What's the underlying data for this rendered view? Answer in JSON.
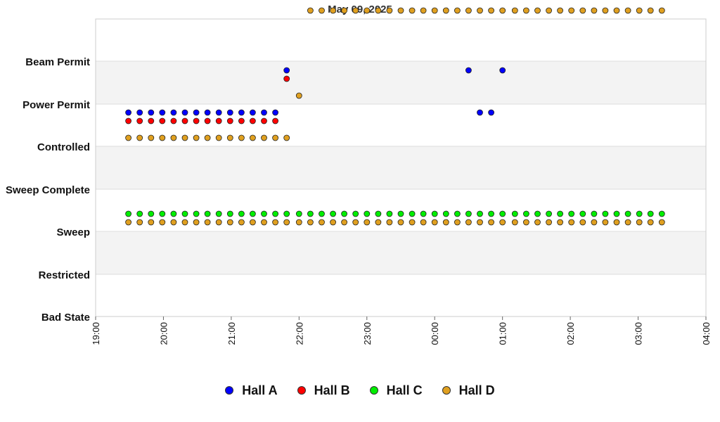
{
  "chart_data": {
    "type": "scatter",
    "title": "May 09, 2025",
    "xlabel": "",
    "ylabel": "",
    "grid": true,
    "legend_position": "bottom",
    "y_categories": [
      "Bad State",
      "Restricted",
      "Sweep",
      "Sweep Complete",
      "Controlled",
      "Power Permit",
      "Beam Permit"
    ],
    "x_range_hours": [
      19,
      28
    ],
    "x_ticks": [
      "19:00",
      "20:00",
      "21:00",
      "22:00",
      "23:00",
      "00:00",
      "01:00",
      "02:00",
      "03:00",
      "04:00"
    ],
    "series": [
      {
        "name": "Hall A",
        "color": "#0000ff",
        "points": [
          [
            "19:29",
            "Power Permit"
          ],
          [
            "19:39",
            "Power Permit"
          ],
          [
            "19:49",
            "Power Permit"
          ],
          [
            "19:59",
            "Power Permit"
          ],
          [
            "20:09",
            "Power Permit"
          ],
          [
            "20:19",
            "Power Permit"
          ],
          [
            "20:29",
            "Power Permit"
          ],
          [
            "20:39",
            "Power Permit"
          ],
          [
            "20:49",
            "Power Permit"
          ],
          [
            "20:59",
            "Power Permit"
          ],
          [
            "21:09",
            "Power Permit"
          ],
          [
            "21:19",
            "Power Permit"
          ],
          [
            "21:29",
            "Power Permit"
          ],
          [
            "21:39",
            "Power Permit"
          ],
          [
            "21:49",
            "Beam Permit"
          ],
          [
            "22:00",
            "Beam Permit"
          ],
          [
            "22:10",
            "Beam Permit"
          ],
          [
            "22:20",
            "Beam Permit"
          ],
          [
            "22:30",
            "Beam Permit"
          ],
          [
            "22:40",
            "Beam Permit"
          ],
          [
            "22:50",
            "Beam Permit"
          ],
          [
            "23:00",
            "Beam Permit"
          ],
          [
            "23:10",
            "Beam Permit"
          ],
          [
            "23:20",
            "Beam Permit"
          ],
          [
            "23:30",
            "Beam Permit"
          ],
          [
            "23:40",
            "Beam Permit"
          ],
          [
            "23:50",
            "Beam Permit"
          ],
          [
            "00:00",
            "Beam Permit"
          ],
          [
            "00:10",
            "Beam Permit"
          ],
          [
            "00:20",
            "Beam Permit"
          ],
          [
            "00:30",
            "Beam Permit"
          ],
          [
            "00:40",
            "Power Permit"
          ],
          [
            "00:50",
            "Power Permit"
          ],
          [
            "01:00",
            "Beam Permit"
          ],
          [
            "01:11",
            "Beam Permit"
          ],
          [
            "01:21",
            "Beam Permit"
          ],
          [
            "01:31",
            "Beam Permit"
          ],
          [
            "01:41",
            "Beam Permit"
          ],
          [
            "01:51",
            "Beam Permit"
          ],
          [
            "02:01",
            "Beam Permit"
          ],
          [
            "02:11",
            "Beam Permit"
          ],
          [
            "02:21",
            "Beam Permit"
          ],
          [
            "02:31",
            "Beam Permit"
          ],
          [
            "02:41",
            "Beam Permit"
          ],
          [
            "02:51",
            "Beam Permit"
          ],
          [
            "03:01",
            "Beam Permit"
          ],
          [
            "03:11",
            "Beam Permit"
          ],
          [
            "03:21",
            "Beam Permit"
          ]
        ]
      },
      {
        "name": "Hall B",
        "color": "#ff0000",
        "points": [
          [
            "19:29",
            "Power Permit"
          ],
          [
            "19:39",
            "Power Permit"
          ],
          [
            "19:49",
            "Power Permit"
          ],
          [
            "19:59",
            "Power Permit"
          ],
          [
            "20:09",
            "Power Permit"
          ],
          [
            "20:19",
            "Power Permit"
          ],
          [
            "20:29",
            "Power Permit"
          ],
          [
            "20:39",
            "Power Permit"
          ],
          [
            "20:49",
            "Power Permit"
          ],
          [
            "20:59",
            "Power Permit"
          ],
          [
            "21:09",
            "Power Permit"
          ],
          [
            "21:19",
            "Power Permit"
          ],
          [
            "21:29",
            "Power Permit"
          ],
          [
            "21:39",
            "Power Permit"
          ],
          [
            "21:49",
            "Beam Permit"
          ],
          [
            "22:00",
            "Beam Permit"
          ],
          [
            "22:10",
            "Beam Permit"
          ],
          [
            "22:20",
            "Beam Permit"
          ],
          [
            "22:30",
            "Beam Permit"
          ],
          [
            "22:40",
            "Beam Permit"
          ],
          [
            "22:50",
            "Beam Permit"
          ],
          [
            "23:00",
            "Beam Permit"
          ],
          [
            "23:10",
            "Beam Permit"
          ],
          [
            "23:20",
            "Beam Permit"
          ],
          [
            "23:30",
            "Beam Permit"
          ],
          [
            "23:40",
            "Beam Permit"
          ],
          [
            "23:50",
            "Beam Permit"
          ],
          [
            "00:00",
            "Beam Permit"
          ],
          [
            "00:10",
            "Beam Permit"
          ],
          [
            "00:20",
            "Beam Permit"
          ],
          [
            "00:30",
            "Beam Permit"
          ],
          [
            "00:40",
            "Beam Permit"
          ],
          [
            "00:50",
            "Beam Permit"
          ],
          [
            "01:00",
            "Beam Permit"
          ],
          [
            "01:11",
            "Beam Permit"
          ],
          [
            "01:21",
            "Beam Permit"
          ],
          [
            "01:31",
            "Beam Permit"
          ],
          [
            "01:41",
            "Beam Permit"
          ],
          [
            "01:51",
            "Beam Permit"
          ],
          [
            "02:01",
            "Beam Permit"
          ],
          [
            "02:11",
            "Beam Permit"
          ],
          [
            "02:21",
            "Beam Permit"
          ],
          [
            "02:31",
            "Beam Permit"
          ],
          [
            "02:41",
            "Beam Permit"
          ],
          [
            "02:51",
            "Beam Permit"
          ],
          [
            "03:01",
            "Beam Permit"
          ],
          [
            "03:11",
            "Beam Permit"
          ],
          [
            "03:21",
            "Beam Permit"
          ]
        ]
      },
      {
        "name": "Hall C",
        "color": "#00ee00",
        "points": [
          [
            "19:29",
            "Restricted"
          ],
          [
            "19:39",
            "Restricted"
          ],
          [
            "19:49",
            "Restricted"
          ],
          [
            "19:59",
            "Restricted"
          ],
          [
            "20:09",
            "Restricted"
          ],
          [
            "20:19",
            "Restricted"
          ],
          [
            "20:29",
            "Restricted"
          ],
          [
            "20:39",
            "Restricted"
          ],
          [
            "20:49",
            "Restricted"
          ],
          [
            "20:59",
            "Restricted"
          ],
          [
            "21:09",
            "Restricted"
          ],
          [
            "21:19",
            "Restricted"
          ],
          [
            "21:29",
            "Restricted"
          ],
          [
            "21:39",
            "Restricted"
          ],
          [
            "21:49",
            "Restricted"
          ],
          [
            "22:00",
            "Restricted"
          ],
          [
            "22:10",
            "Restricted"
          ],
          [
            "22:20",
            "Restricted"
          ],
          [
            "22:30",
            "Restricted"
          ],
          [
            "22:40",
            "Restricted"
          ],
          [
            "22:50",
            "Restricted"
          ],
          [
            "23:00",
            "Restricted"
          ],
          [
            "23:10",
            "Restricted"
          ],
          [
            "23:20",
            "Restricted"
          ],
          [
            "23:30",
            "Restricted"
          ],
          [
            "23:40",
            "Restricted"
          ],
          [
            "23:50",
            "Restricted"
          ],
          [
            "00:00",
            "Restricted"
          ],
          [
            "00:10",
            "Restricted"
          ],
          [
            "00:20",
            "Restricted"
          ],
          [
            "00:30",
            "Restricted"
          ],
          [
            "00:40",
            "Restricted"
          ],
          [
            "00:50",
            "Restricted"
          ],
          [
            "01:00",
            "Restricted"
          ],
          [
            "01:11",
            "Restricted"
          ],
          [
            "01:21",
            "Restricted"
          ],
          [
            "01:31",
            "Restricted"
          ],
          [
            "01:41",
            "Restricted"
          ],
          [
            "01:51",
            "Restricted"
          ],
          [
            "02:01",
            "Restricted"
          ],
          [
            "02:11",
            "Restricted"
          ],
          [
            "02:21",
            "Restricted"
          ],
          [
            "02:31",
            "Restricted"
          ],
          [
            "02:41",
            "Restricted"
          ],
          [
            "02:51",
            "Restricted"
          ],
          [
            "03:01",
            "Restricted"
          ],
          [
            "03:11",
            "Restricted"
          ],
          [
            "03:21",
            "Restricted"
          ]
        ]
      },
      {
        "name": "Hall D",
        "color": "#e0a020",
        "points": [
          [
            "19:29",
            "Controlled"
          ],
          [
            "19:39",
            "Controlled"
          ],
          [
            "19:49",
            "Controlled"
          ],
          [
            "19:59",
            "Controlled"
          ],
          [
            "20:09",
            "Controlled"
          ],
          [
            "20:19",
            "Controlled"
          ],
          [
            "20:29",
            "Controlled"
          ],
          [
            "20:39",
            "Controlled"
          ],
          [
            "20:49",
            "Controlled"
          ],
          [
            "20:59",
            "Controlled"
          ],
          [
            "21:09",
            "Controlled"
          ],
          [
            "21:19",
            "Controlled"
          ],
          [
            "21:29",
            "Controlled"
          ],
          [
            "21:39",
            "Controlled"
          ],
          [
            "21:49",
            "Controlled"
          ],
          [
            "22:00",
            "Power Permit"
          ],
          [
            "22:10",
            "Beam Permit"
          ],
          [
            "22:20",
            "Beam Permit"
          ],
          [
            "22:30",
            "Beam Permit"
          ],
          [
            "22:40",
            "Beam Permit"
          ],
          [
            "22:50",
            "Beam Permit"
          ],
          [
            "23:00",
            "Beam Permit"
          ],
          [
            "23:10",
            "Beam Permit"
          ],
          [
            "23:20",
            "Beam Permit"
          ],
          [
            "23:30",
            "Beam Permit"
          ],
          [
            "23:40",
            "Beam Permit"
          ],
          [
            "23:50",
            "Beam Permit"
          ],
          [
            "00:00",
            "Beam Permit"
          ],
          [
            "00:10",
            "Beam Permit"
          ],
          [
            "00:20",
            "Beam Permit"
          ],
          [
            "00:30",
            "Beam Permit"
          ],
          [
            "00:40",
            "Beam Permit"
          ],
          [
            "00:50",
            "Beam Permit"
          ],
          [
            "01:00",
            "Beam Permit"
          ],
          [
            "01:11",
            "Beam Permit"
          ],
          [
            "01:21",
            "Beam Permit"
          ],
          [
            "01:31",
            "Beam Permit"
          ],
          [
            "01:41",
            "Beam Permit"
          ],
          [
            "01:51",
            "Beam Permit"
          ],
          [
            "02:01",
            "Beam Permit"
          ],
          [
            "02:11",
            "Beam Permit"
          ],
          [
            "02:21",
            "Beam Permit"
          ],
          [
            "02:31",
            "Beam Permit"
          ],
          [
            "02:41",
            "Beam Permit"
          ],
          [
            "02:51",
            "Beam Permit"
          ],
          [
            "03:01",
            "Beam Permit"
          ],
          [
            "03:11",
            "Beam Permit"
          ],
          [
            "03:21",
            "Beam Permit"
          ],
          [
            "19:29",
            "Restricted"
          ],
          [
            "19:39",
            "Restricted"
          ],
          [
            "19:49",
            "Restricted"
          ],
          [
            "19:59",
            "Restricted"
          ],
          [
            "20:09",
            "Restricted"
          ],
          [
            "20:19",
            "Restricted"
          ],
          [
            "20:29",
            "Restricted"
          ],
          [
            "20:39",
            "Restricted"
          ],
          [
            "20:49",
            "Restricted"
          ],
          [
            "20:59",
            "Restricted"
          ],
          [
            "21:09",
            "Restricted"
          ],
          [
            "21:19",
            "Restricted"
          ],
          [
            "21:29",
            "Restricted"
          ],
          [
            "21:39",
            "Restricted"
          ],
          [
            "21:49",
            "Restricted"
          ],
          [
            "22:00",
            "Restricted"
          ],
          [
            "22:10",
            "Restricted"
          ],
          [
            "22:20",
            "Restricted"
          ],
          [
            "22:30",
            "Restricted"
          ],
          [
            "22:40",
            "Restricted"
          ],
          [
            "22:50",
            "Restricted"
          ],
          [
            "23:00",
            "Restricted"
          ],
          [
            "23:10",
            "Restricted"
          ],
          [
            "23:20",
            "Restricted"
          ],
          [
            "23:30",
            "Restricted"
          ],
          [
            "23:40",
            "Restricted"
          ],
          [
            "23:50",
            "Restricted"
          ],
          [
            "00:00",
            "Restricted"
          ],
          [
            "00:10",
            "Restricted"
          ],
          [
            "00:20",
            "Restricted"
          ],
          [
            "00:30",
            "Restricted"
          ],
          [
            "00:40",
            "Restricted"
          ],
          [
            "00:50",
            "Restricted"
          ],
          [
            "01:00",
            "Restricted"
          ],
          [
            "01:11",
            "Restricted"
          ],
          [
            "01:21",
            "Restricted"
          ],
          [
            "01:31",
            "Restricted"
          ],
          [
            "01:41",
            "Restricted"
          ],
          [
            "01:51",
            "Restricted"
          ],
          [
            "02:01",
            "Restricted"
          ],
          [
            "02:11",
            "Restricted"
          ],
          [
            "02:21",
            "Restricted"
          ],
          [
            "02:31",
            "Restricted"
          ],
          [
            "02:41",
            "Restricted"
          ],
          [
            "02:51",
            "Restricted"
          ],
          [
            "03:01",
            "Restricted"
          ],
          [
            "03:11",
            "Restricted"
          ],
          [
            "03:21",
            "Restricted"
          ]
        ]
      }
    ]
  }
}
